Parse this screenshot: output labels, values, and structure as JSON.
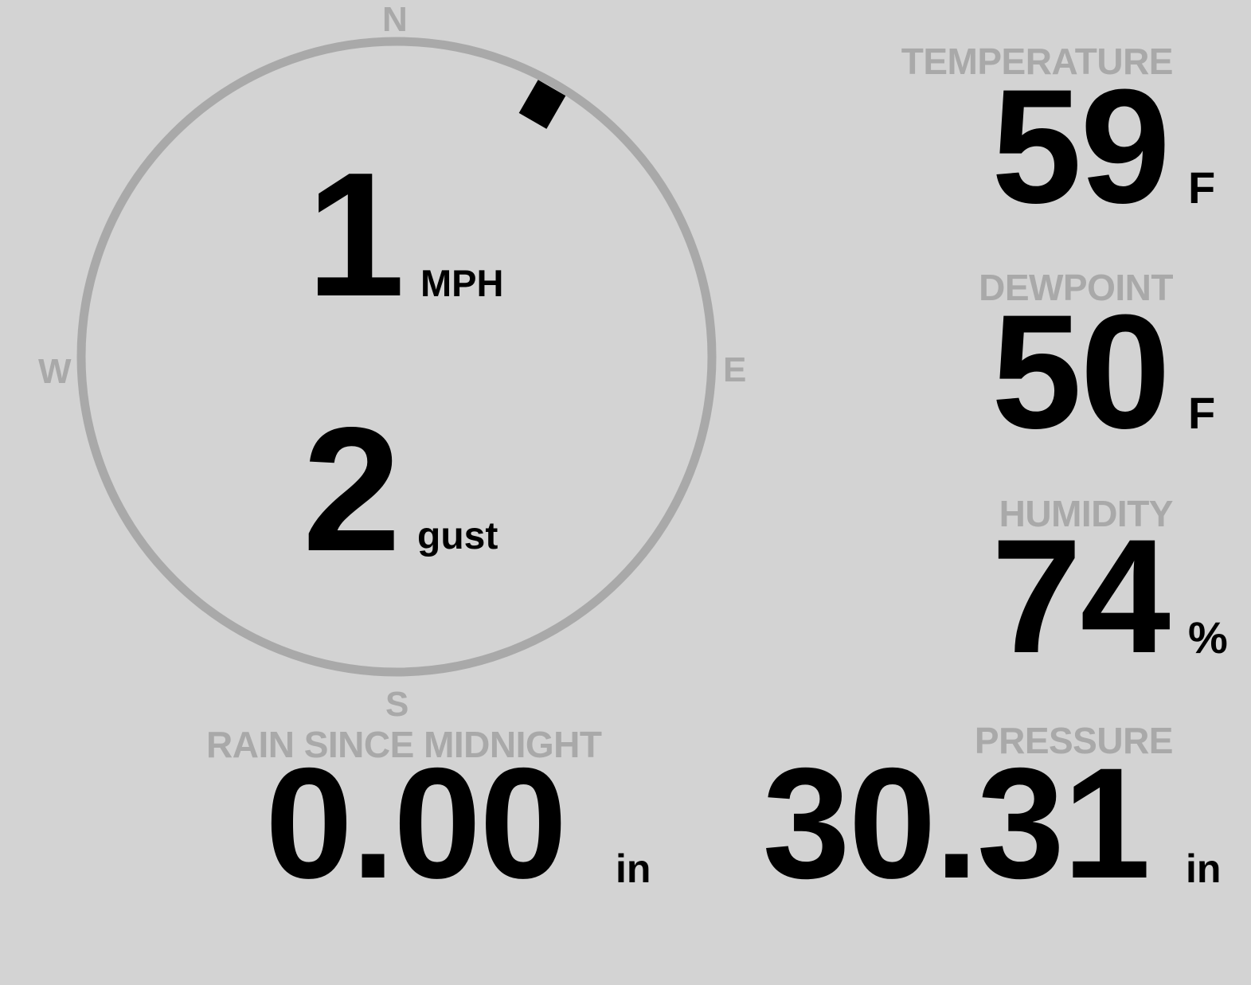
{
  "colors": {
    "background": "#d3d3d3",
    "label": "#a9a9a9",
    "value": "#000000",
    "ring": "#a9a9a9"
  },
  "wind": {
    "compass": {
      "n": "N",
      "e": "E",
      "s": "S",
      "w": "W"
    },
    "direction_deg": 30,
    "speed": "1",
    "speed_unit": "MPH",
    "gust": "2",
    "gust_unit": "gust"
  },
  "temperature": {
    "label": "TEMPERATURE",
    "value": "59",
    "unit": "F"
  },
  "dewpoint": {
    "label": "DEWPOINT",
    "value": "50",
    "unit": "F"
  },
  "humidity": {
    "label": "HUMIDITY",
    "value": "74",
    "unit": "%"
  },
  "rain": {
    "label": "RAIN SINCE MIDNIGHT",
    "value": "0.00",
    "unit": "in"
  },
  "pressure": {
    "label": "PRESSURE",
    "value": "30.31",
    "unit": "in"
  }
}
